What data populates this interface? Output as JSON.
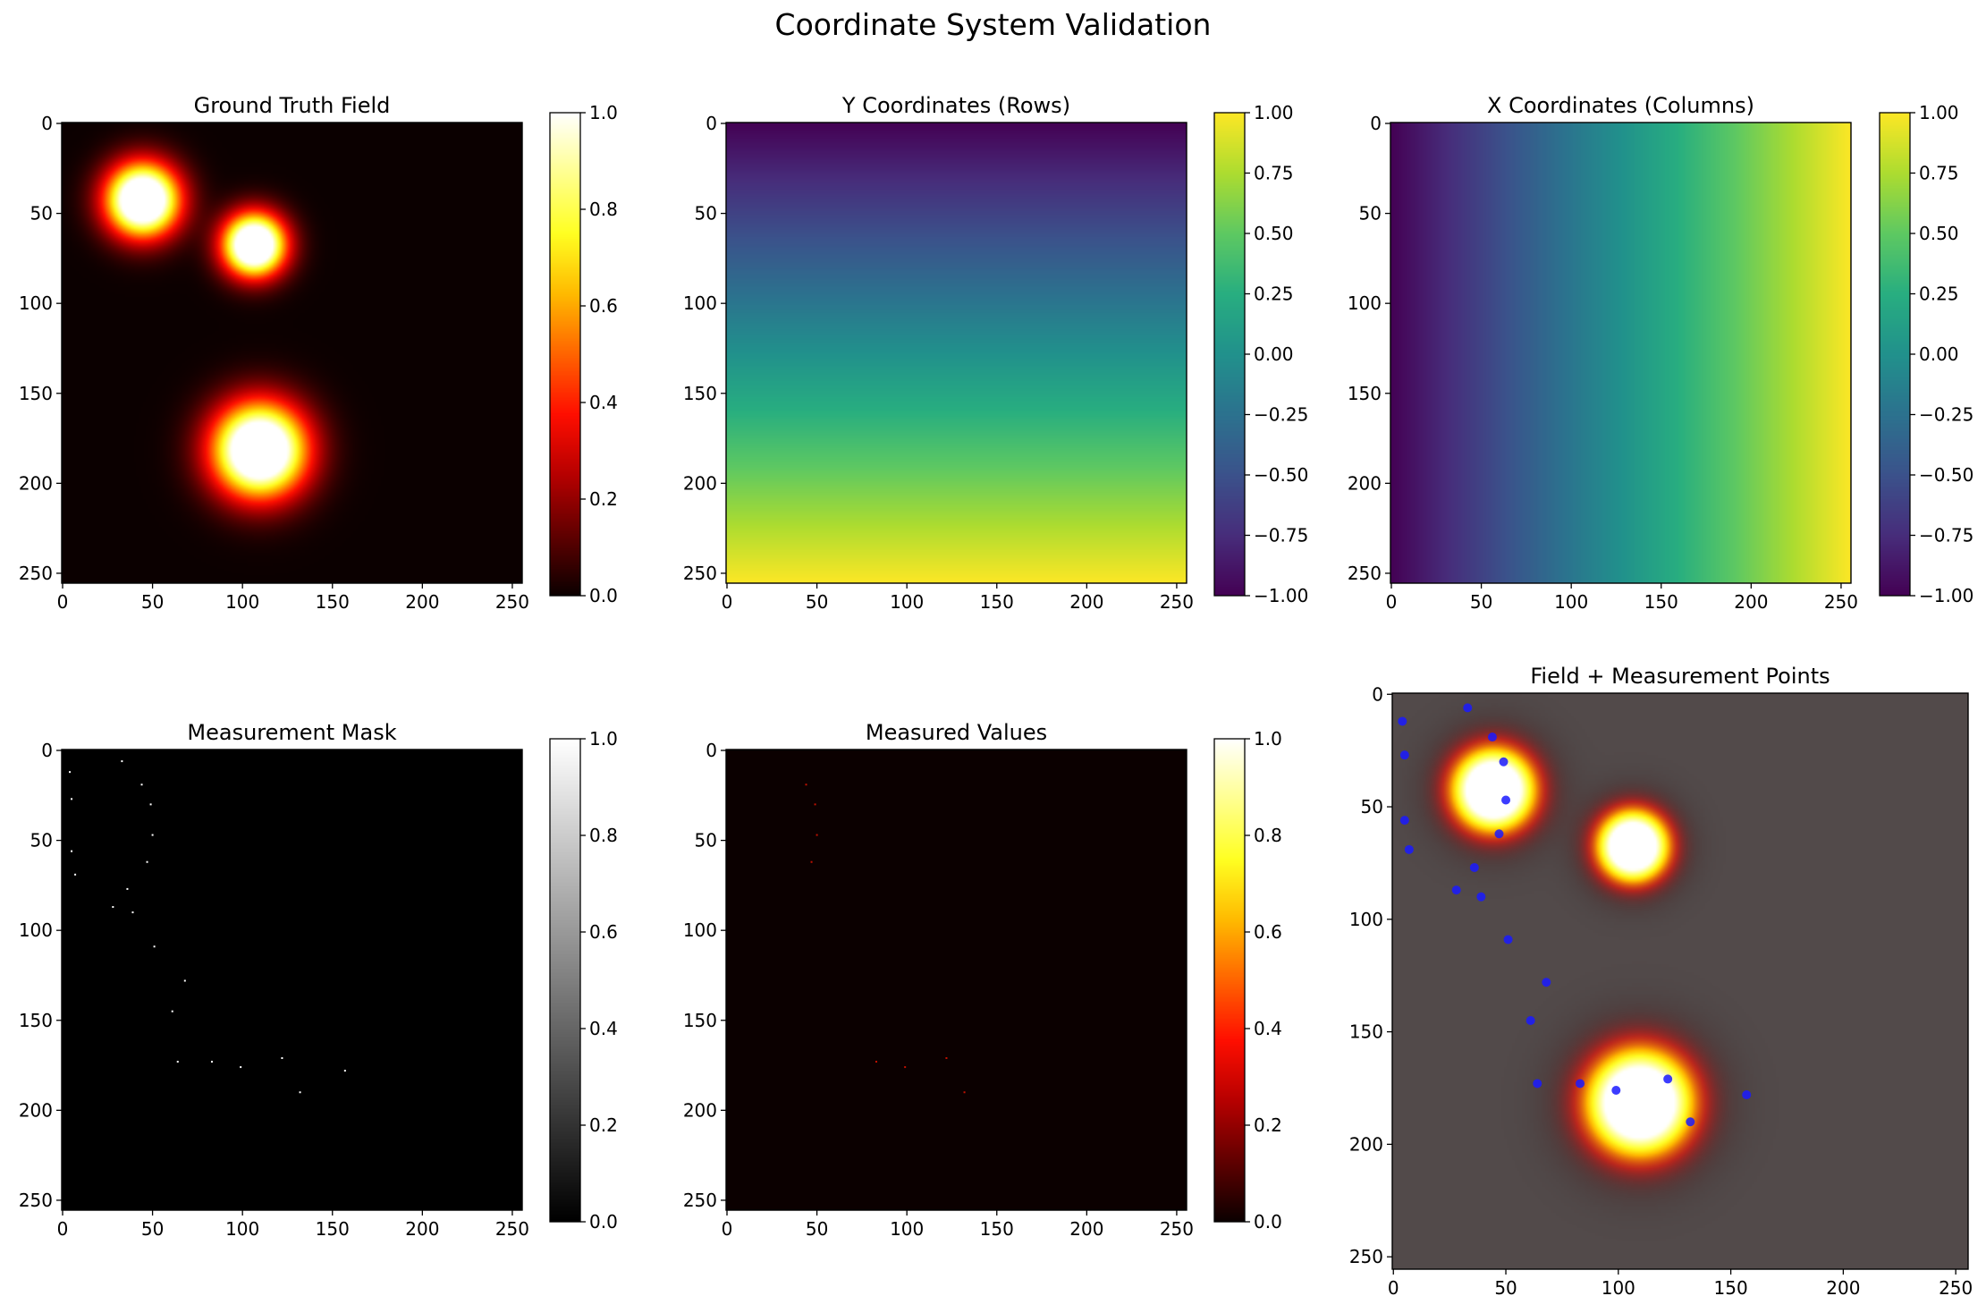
{
  "title": "Coordinate System Validation",
  "colormaps": {
    "hot": [
      "#0b0000",
      "#600000",
      "#b60000",
      "#ff0e00",
      "#ff6400",
      "#ffba00",
      "#ffff22",
      "#ffff90",
      "#ffffff"
    ],
    "viridis": [
      "#440154",
      "#472d7b",
      "#3b528b",
      "#2c728e",
      "#21918c",
      "#28ae80",
      "#5ec962",
      "#addc30",
      "#fde725"
    ],
    "gray": [
      "#000000",
      "#ffffff"
    ],
    "overlay_background": "#524a4a",
    "point_color": "#1a1aff"
  },
  "chart_data": [
    {
      "type": "heatmap",
      "title": "Ground Truth Field",
      "cmap": "hot",
      "field": "ground_truth",
      "shape": [
        256,
        256
      ],
      "sources": [
        {
          "x": 45,
          "y": 43,
          "sigma": 14
        },
        {
          "x": 107,
          "y": 68,
          "sigma": 12
        },
        {
          "x": 110,
          "y": 182,
          "sigma": 18
        }
      ],
      "xlim": [
        0,
        255
      ],
      "ylim": [
        255,
        0
      ],
      "xticks": [
        "0",
        "50",
        "100",
        "150",
        "200",
        "250"
      ],
      "yticks": [
        "0",
        "50",
        "100",
        "150",
        "200",
        "250"
      ],
      "colorbar": {
        "range": [
          0,
          1
        ],
        "ticks": [
          "0.0",
          "0.2",
          "0.4",
          "0.6",
          "0.8",
          "1.0"
        ]
      }
    },
    {
      "type": "heatmap",
      "title": "Y Coordinates (Rows)",
      "cmap": "viridis",
      "field": "row_coordinate",
      "shape": [
        256,
        256
      ],
      "range": [
        -1,
        1
      ],
      "xlim": [
        0,
        255
      ],
      "ylim": [
        255,
        0
      ],
      "xticks": [
        "0",
        "50",
        "100",
        "150",
        "200",
        "250"
      ],
      "yticks": [
        "0",
        "50",
        "100",
        "150",
        "200",
        "250"
      ],
      "colorbar": {
        "range": [
          -1,
          1
        ],
        "ticks": [
          "−1.00",
          "−0.75",
          "−0.50",
          "−0.25",
          "0.00",
          "0.25",
          "0.50",
          "0.75",
          "1.00"
        ]
      }
    },
    {
      "type": "heatmap",
      "title": "X Coordinates (Columns)",
      "cmap": "viridis",
      "field": "column_coordinate",
      "shape": [
        256,
        256
      ],
      "range": [
        -1,
        1
      ],
      "xlim": [
        0,
        255
      ],
      "ylim": [
        255,
        0
      ],
      "xticks": [
        "0",
        "50",
        "100",
        "150",
        "200",
        "250"
      ],
      "yticks": [
        "0",
        "50",
        "100",
        "150",
        "200",
        "250"
      ],
      "colorbar": {
        "range": [
          -1,
          1
        ],
        "ticks": [
          "−1.00",
          "−0.75",
          "−0.50",
          "−0.25",
          "0.00",
          "0.25",
          "0.50",
          "0.75",
          "1.00"
        ]
      }
    },
    {
      "type": "heatmap",
      "title": "Measurement Mask",
      "cmap": "gray",
      "field": "mask",
      "shape": [
        256,
        256
      ],
      "points": [
        [
          4,
          12
        ],
        [
          5,
          27
        ],
        [
          5,
          56
        ],
        [
          7,
          69
        ],
        [
          33,
          6
        ],
        [
          44,
          19
        ],
        [
          49,
          30
        ],
        [
          50,
          47
        ],
        [
          47,
          62
        ],
        [
          36,
          77
        ],
        [
          28,
          87
        ],
        [
          39,
          90
        ],
        [
          51,
          109
        ],
        [
          68,
          128
        ],
        [
          61,
          145
        ],
        [
          64,
          173
        ],
        [
          83,
          173
        ],
        [
          99,
          176
        ],
        [
          122,
          171
        ],
        [
          132,
          190
        ],
        [
          157,
          178
        ]
      ],
      "xlim": [
        0,
        255
      ],
      "ylim": [
        255,
        0
      ],
      "xticks": [
        "0",
        "50",
        "100",
        "150",
        "200",
        "250"
      ],
      "yticks": [
        "0",
        "50",
        "100",
        "150",
        "200",
        "250"
      ],
      "colorbar": {
        "range": [
          0,
          1
        ],
        "ticks": [
          "0.0",
          "0.2",
          "0.4",
          "0.6",
          "0.8",
          "1.0"
        ]
      }
    },
    {
      "type": "heatmap",
      "title": "Measured Values",
      "cmap": "hot",
      "field": "measured",
      "shape": [
        256,
        256
      ],
      "points": [
        [
          44,
          19
        ],
        [
          49,
          30
        ],
        [
          50,
          47
        ],
        [
          47,
          62
        ],
        [
          83,
          173
        ],
        [
          99,
          176
        ],
        [
          122,
          171
        ],
        [
          132,
          190
        ]
      ],
      "xlim": [
        0,
        255
      ],
      "ylim": [
        255,
        0
      ],
      "xticks": [
        "0",
        "50",
        "100",
        "150",
        "200",
        "250"
      ],
      "yticks": [
        "0",
        "50",
        "100",
        "150",
        "200",
        "250"
      ],
      "colorbar": {
        "range": [
          0,
          1
        ],
        "ticks": [
          "0.0",
          "0.2",
          "0.4",
          "0.6",
          "0.8",
          "1.0"
        ]
      }
    },
    {
      "type": "scatter",
      "title": "Field + Measurement Points",
      "cmap": "hot",
      "field": "ground_truth_overlay",
      "shape": [
        256,
        256
      ],
      "points": [
        [
          4,
          12
        ],
        [
          5,
          27
        ],
        [
          5,
          56
        ],
        [
          7,
          69
        ],
        [
          33,
          6
        ],
        [
          44,
          19
        ],
        [
          49,
          30
        ],
        [
          50,
          47
        ],
        [
          47,
          62
        ],
        [
          36,
          77
        ],
        [
          28,
          87
        ],
        [
          39,
          90
        ],
        [
          51,
          109
        ],
        [
          68,
          128
        ],
        [
          61,
          145
        ],
        [
          64,
          173
        ],
        [
          83,
          173
        ],
        [
          99,
          176
        ],
        [
          122,
          171
        ],
        [
          132,
          190
        ],
        [
          157,
          178
        ]
      ],
      "xlim": [
        0,
        255
      ],
      "ylim": [
        255,
        0
      ],
      "xticks": [
        "0",
        "50",
        "100",
        "150",
        "200",
        "250"
      ],
      "yticks": [
        "0",
        "50",
        "100",
        "150",
        "200",
        "250"
      ]
    }
  ]
}
